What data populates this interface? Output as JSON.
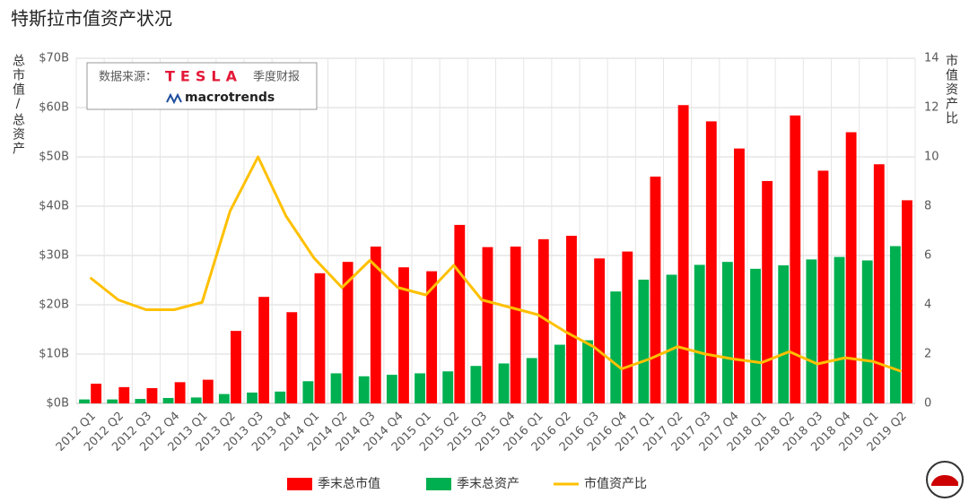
{
  "chart_data": {
    "type": "bar",
    "title": "特斯拉市值资产状况",
    "y_label": "总市值/总资产",
    "y2_label": "市值资产比",
    "source": {
      "prefix": "数据来源：",
      "brand": "TESLA",
      "suffix": "季度财报",
      "site": "macrotrends"
    },
    "categories": [
      "2012 Q1",
      "2012 Q2",
      "2012 Q3",
      "2012 Q4",
      "2013 Q1",
      "2013 Q2",
      "2013 Q3",
      "2013 Q4",
      "2014 Q1",
      "2014 Q2",
      "2014 Q3",
      "2014 Q4",
      "2015 Q1",
      "2015 Q2",
      "2015 Q3",
      "2015 Q4",
      "2016 Q1",
      "2016 Q2",
      "2016 Q3",
      "2016 Q4",
      "2017 Q1",
      "2017 Q2",
      "2017 Q3",
      "2017 Q4",
      "2018 Q1",
      "2018 Q2",
      "2018 Q3",
      "2018 Q4",
      "2019 Q1",
      "2019 Q2"
    ],
    "series": [
      {
        "name": "季末总市值",
        "type": "bar",
        "color": "#ff0000",
        "values": [
          4.0,
          3.3,
          3.1,
          4.3,
          4.8,
          14.7,
          21.6,
          18.5,
          26.4,
          28.7,
          31.8,
          27.6,
          26.8,
          36.2,
          31.7,
          31.8,
          33.3,
          34.0,
          29.4,
          30.8,
          46.0,
          60.5,
          57.2,
          51.7,
          45.1,
          58.4,
          47.2,
          55.0,
          48.5,
          41.2
        ]
      },
      {
        "name": "季末总资产",
        "type": "bar",
        "color": "#00b050",
        "values": [
          0.8,
          0.8,
          0.9,
          1.1,
          1.2,
          1.9,
          2.2,
          2.4,
          4.5,
          6.1,
          5.5,
          5.8,
          6.1,
          6.5,
          7.6,
          8.1,
          9.2,
          11.9,
          12.8,
          22.7,
          25.1,
          26.1,
          28.1,
          28.7,
          27.3,
          28.0,
          29.2,
          29.7,
          29.0,
          31.9
        ]
      },
      {
        "name": "市值资产比",
        "type": "line",
        "axis": "y2",
        "color": "#ffc000",
        "values": [
          5.1,
          4.2,
          3.8,
          3.8,
          4.1,
          7.8,
          10.0,
          7.6,
          5.9,
          4.7,
          5.8,
          4.7,
          4.4,
          5.6,
          4.2,
          3.9,
          3.6,
          2.9,
          2.3,
          1.4,
          1.8,
          2.3,
          2.0,
          1.8,
          1.65,
          2.1,
          1.6,
          1.85,
          1.7,
          1.3
        ]
      }
    ],
    "ylim": [
      0,
      70
    ],
    "yticks": [
      {
        "value": 0,
        "label": "$0B"
      },
      {
        "value": 10,
        "label": "$10B"
      },
      {
        "value": 20,
        "label": "$20B"
      },
      {
        "value": 30,
        "label": "$30B"
      },
      {
        "value": 40,
        "label": "$40B"
      },
      {
        "value": 50,
        "label": "$50B"
      },
      {
        "value": 60,
        "label": "$60B"
      },
      {
        "value": 70,
        "label": "$70B"
      }
    ],
    "y2lim": [
      0,
      14
    ],
    "y2ticks": [
      0,
      2,
      4,
      6,
      8,
      10,
      12,
      14
    ],
    "grid": true,
    "legend": "bottom"
  }
}
